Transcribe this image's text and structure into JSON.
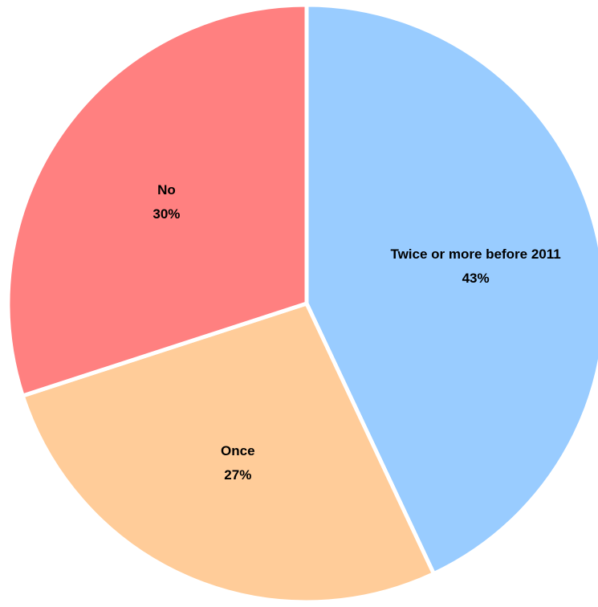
{
  "chart_data": {
    "type": "pie",
    "slices": [
      {
        "label": "Twice or more before 2011",
        "value": 43,
        "value_label": "43%",
        "color": "#99ccff"
      },
      {
        "label": "Once",
        "value": 27,
        "value_label": "27%",
        "color": "#ffcc99"
      },
      {
        "label": "No",
        "value": 30,
        "value_label": "30%",
        "color": "#ff8080"
      }
    ],
    "start_angle": "12 o'clock",
    "direction": "clockwise",
    "legend": "none",
    "slice_border_color": "#ffffff"
  }
}
